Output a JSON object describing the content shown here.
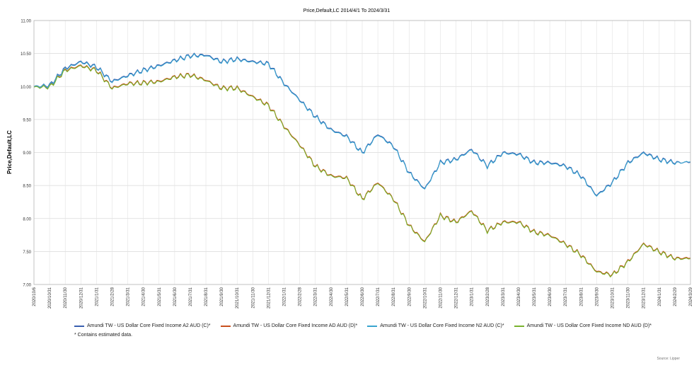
{
  "chart_data": {
    "type": "line",
    "title": "Price,Default,LC 2014/4/1 To 2024/3/31",
    "ylabel": "Price,Default,LC",
    "xlabel": "",
    "ylim": [
      7.0,
      11.0
    ],
    "yticks": [
      "11.00",
      "10.50",
      "10.00",
      "9.50",
      "9.00",
      "8.50",
      "8.00",
      "7.50",
      "7.00"
    ],
    "grid": true,
    "legend_position": "bottom",
    "x_ticks": [
      "2020/10/6",
      "2020/10/31",
      "2020/11/30",
      "2020/12/31",
      "2021/1/31",
      "2021/2/28",
      "2021/3/31",
      "2021/4/30",
      "2021/5/31",
      "2021/6/30",
      "2021/7/31",
      "2021/8/31",
      "2021/9/30",
      "2021/10/31",
      "2021/11/30",
      "2021/12/31",
      "2022/1/31",
      "2022/2/28",
      "2022/3/31",
      "2022/4/30",
      "2022/5/31",
      "2022/6/30",
      "2022/7/31",
      "2022/8/31",
      "2022/9/30",
      "2022/10/31",
      "2022/11/30",
      "2022/12/31",
      "2023/1/31",
      "2023/2/28",
      "2023/3/31",
      "2023/4/30",
      "2023/5/31",
      "2023/6/30",
      "2023/7/31",
      "2023/8/31",
      "2023/9/30",
      "2023/10/31",
      "2023/11/30",
      "2023/12/31",
      "2024/1/31",
      "2024/2/29",
      "2024/3/29"
    ],
    "series": [
      {
        "name": "Amundi TW - US Dollar Core Fixed Income A2 AUD (C)*",
        "color": "#3a5fb0",
        "values": [
          10.0,
          10.02,
          10.28,
          10.38,
          10.3,
          10.08,
          10.17,
          10.25,
          10.32,
          10.4,
          10.47,
          10.48,
          10.38,
          10.42,
          10.38,
          10.35,
          10.05,
          9.8,
          9.55,
          9.35,
          9.25,
          9.0,
          9.28,
          9.1,
          8.7,
          8.45,
          8.85,
          8.9,
          9.05,
          8.8,
          9.0,
          8.98,
          8.85,
          8.85,
          8.8,
          8.65,
          8.35,
          8.55,
          8.85,
          9.0,
          8.9,
          8.85,
          8.85
        ]
      },
      {
        "name": "Amundi TW - US Dollar Core Fixed Income AD AUD (D)*",
        "color": "#c8501e",
        "values": [
          10.0,
          10.0,
          10.25,
          10.32,
          10.25,
          9.98,
          10.05,
          10.06,
          10.08,
          10.15,
          10.18,
          10.1,
          9.98,
          9.98,
          9.85,
          9.72,
          9.4,
          9.12,
          8.8,
          8.65,
          8.62,
          8.3,
          8.55,
          8.3,
          7.9,
          7.65,
          8.05,
          7.95,
          8.12,
          7.82,
          7.95,
          7.95,
          7.8,
          7.75,
          7.62,
          7.45,
          7.2,
          7.15,
          7.35,
          7.62,
          7.5,
          7.4,
          7.4
        ]
      },
      {
        "name": "Amundi TW - US Dollar Core Fixed Income N2 AUD (C)*",
        "color": "#39a4cf",
        "values": [
          10.0,
          10.01,
          10.27,
          10.37,
          10.29,
          10.07,
          10.16,
          10.24,
          10.31,
          10.39,
          10.46,
          10.47,
          10.37,
          10.41,
          10.37,
          10.34,
          10.04,
          9.79,
          9.54,
          9.34,
          9.24,
          8.99,
          9.27,
          9.09,
          8.69,
          8.44,
          8.84,
          8.89,
          9.04,
          8.79,
          8.99,
          8.97,
          8.84,
          8.84,
          8.79,
          8.64,
          8.34,
          8.54,
          8.84,
          8.99,
          8.89,
          8.84,
          8.86
        ]
      },
      {
        "name": "Amundi TW - US Dollar Core Fixed Income ND AUD (D)*",
        "color": "#7ab32e",
        "values": [
          9.99,
          9.99,
          10.24,
          10.31,
          10.24,
          9.97,
          10.04,
          10.05,
          10.07,
          10.14,
          10.17,
          10.09,
          9.97,
          9.97,
          9.84,
          9.71,
          9.39,
          9.11,
          8.79,
          8.64,
          8.61,
          8.29,
          8.54,
          8.29,
          7.89,
          7.64,
          8.04,
          7.94,
          8.11,
          7.81,
          7.94,
          7.94,
          7.79,
          7.74,
          7.61,
          7.44,
          7.19,
          7.14,
          7.34,
          7.61,
          7.49,
          7.39,
          7.39
        ]
      }
    ]
  },
  "legend_note": "* Contains estimated data.",
  "source": "Source: Lipper"
}
